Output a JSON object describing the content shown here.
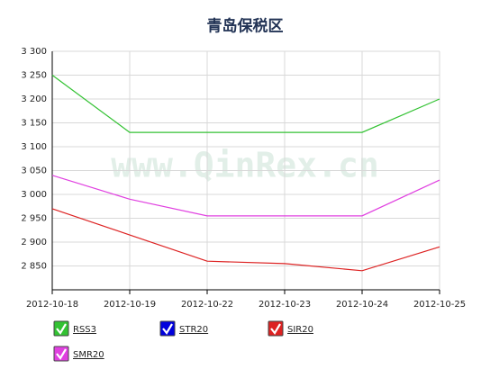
{
  "chart_data": {
    "type": "line",
    "title": "青岛保税区",
    "watermark": "www.QinRex.cn",
    "categories": [
      "2012-10-18",
      "2012-10-19",
      "2012-10-22",
      "2012-10-23",
      "2012-10-24",
      "2012-10-25"
    ],
    "series": [
      {
        "name": "RSS3",
        "color": "#33c233",
        "values": [
          3250,
          3130,
          3130,
          3130,
          3130,
          3200
        ]
      },
      {
        "name": "STR20",
        "color": "#0000dd",
        "values": [
          null,
          null,
          null,
          null,
          null,
          null
        ]
      },
      {
        "name": "SIR20",
        "color": "#dd2222",
        "values": [
          2970,
          2915,
          2860,
          2855,
          2840,
          2890
        ]
      },
      {
        "name": "SMR20",
        "color": "#e040e0",
        "values": [
          3040,
          2990,
          2955,
          2955,
          2955,
          3030
        ]
      }
    ],
    "ylim": [
      2800,
      3300
    ],
    "yticks": [
      {
        "value": 2850,
        "label": "2 850"
      },
      {
        "value": 2900,
        "label": "2 900"
      },
      {
        "value": 2950,
        "label": "2 950"
      },
      {
        "value": 3000,
        "label": "3 000"
      },
      {
        "value": 3050,
        "label": "3 050"
      },
      {
        "value": 3100,
        "label": "3 100"
      },
      {
        "value": 3150,
        "label": "3 150"
      },
      {
        "value": 3200,
        "label": "3 200"
      },
      {
        "value": 3250,
        "label": "3 250"
      },
      {
        "value": 3300,
        "label": "3 300"
      }
    ],
    "grid": true
  }
}
